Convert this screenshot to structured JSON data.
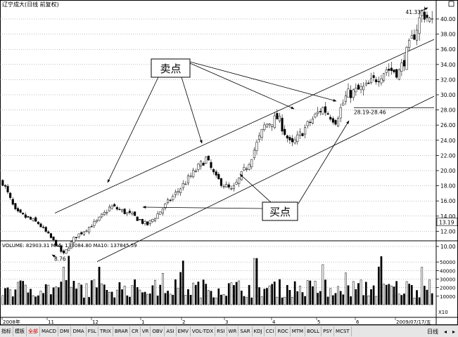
{
  "header": {
    "title": "辽宁成大(日线 前复权)"
  },
  "chart_data": {
    "type": "candlestick",
    "title": "辽宁成大(日线 前复权)",
    "price_axis": {
      "ticks": [
        "40.00",
        "38.00",
        "36.00",
        "34.00",
        "32.00",
        "30.00",
        "28.00",
        "26.00",
        "24.00",
        "22.00",
        "20.00",
        "18.00",
        "16.00",
        "14.00",
        "12.00",
        "10.00"
      ],
      "ylim": [
        8.5,
        41.5
      ],
      "current_price_label": "13.19"
    },
    "time_axis": {
      "labels": [
        "2008年",
        "11",
        "12",
        "1",
        "2",
        "3",
        "4",
        "5",
        "6",
        "2009/07/17/五"
      ]
    },
    "key_prices": [
      {
        "label": "8.76",
        "value": 8.76
      },
      {
        "label": "41.33",
        "value": 41.33
      },
      {
        "label": "28.19-28.46",
        "value": 28.3
      }
    ],
    "channel": {
      "upper_line": {
        "start": 14.4,
        "end": 37.3
      },
      "lower_line": {
        "start": 8.0,
        "end": 29.8
      }
    },
    "annotations": [
      {
        "text": "卖点"
      },
      {
        "text": "买点"
      }
    ],
    "volume": {
      "header": "VOLUME: 82903.31  MA5: 133084.80  MA10: 137845.59",
      "ticks": [
        "50000",
        "40000",
        "30000",
        "20000",
        "10000"
      ],
      "unit_label": "X10",
      "ylim": [
        0,
        60000
      ]
    }
  },
  "toolbar": {
    "tabs": [
      "指标",
      "模板",
      "全部",
      "MACD",
      "DMI",
      "DMA",
      "FSL",
      "TRIX",
      "BRAR",
      "CR",
      "VR",
      "OBV",
      "ASI",
      "EMV",
      "VOL-TDX",
      "RSI",
      "WR",
      "SAR",
      "KDJ",
      "CCI",
      "ROC",
      "MTM",
      "BOLL",
      "PSY",
      "MCST"
    ],
    "active": "全部",
    "right_label": "日线"
  }
}
